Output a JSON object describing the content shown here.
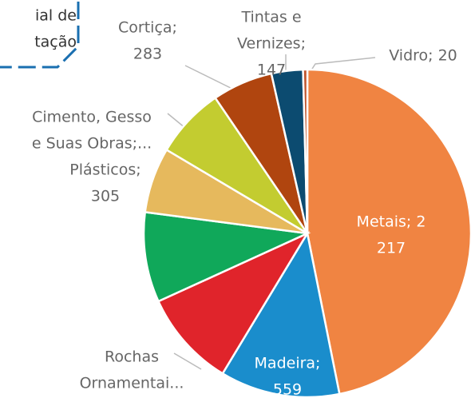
{
  "chart_data": {
    "type": "pie",
    "annotation_lines": [
      "ial de",
      "tação"
    ],
    "labels": [
      [
        "Metais; 2",
        "217"
      ],
      [
        "Madeira;",
        "559"
      ],
      [
        "Rochas",
        "Ornamentai..."
      ],
      null,
      [
        "Plásticos;",
        "305"
      ],
      [
        "Cimento, Gesso",
        "e Suas Obras;..."
      ],
      [
        "Cortiça;",
        "283"
      ],
      [
        "Tintas e",
        "Vernizes;",
        "147"
      ],
      [
        "Vidro; 20"
      ]
    ],
    "values": [
      2217,
      559,
      451,
      420,
      305,
      330,
      283,
      147,
      20
    ],
    "colors": [
      "#f08442",
      "#1a8dcc",
      "#e0242b",
      "#10a85a",
      "#e6b95d",
      "#c3cc30",
      "#b0450f",
      "#0c4b70",
      "#c0552d"
    ]
  }
}
